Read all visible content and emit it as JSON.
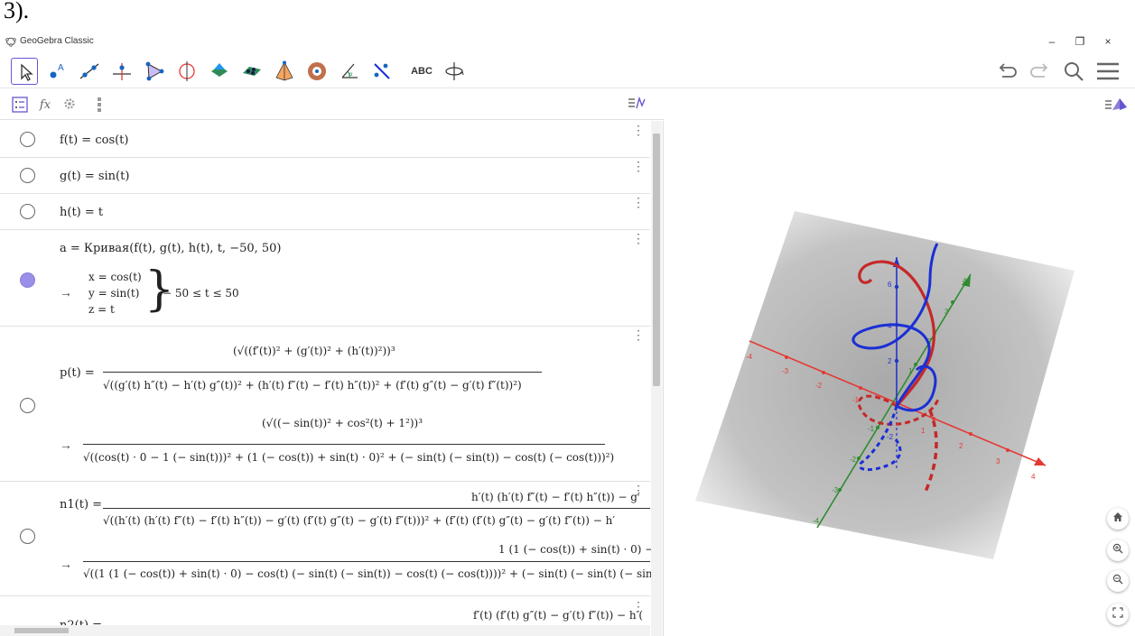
{
  "caption": "3).",
  "app": {
    "title": "GeoGebra Classic"
  },
  "window": {
    "minimize": "–",
    "maximize": "❐",
    "close": "×"
  },
  "toolbar": {
    "tools": [
      "move-tool",
      "point-tool",
      "line-tool",
      "perpendicular-tool",
      "polygon-tool",
      "circle-axis-tool",
      "intersect-surfaces-tool",
      "plane-tool",
      "pyramid-tool",
      "sphere-tool",
      "angle-tool",
      "reflect-tool",
      "text-tool",
      "rotate-view-tool"
    ],
    "text_tool_label": "ABC",
    "right": [
      "undo-icon",
      "redo-icon",
      "search-icon",
      "menu-icon"
    ]
  },
  "algebra_header": {
    "fx": "fx"
  },
  "rows": {
    "f": "f(t) = cos(t)",
    "g": "g(t) = sin(t)",
    "h": "h(t) = t",
    "a": {
      "def": "a = Кривая(f(t), g(t), h(t), t, −50, 50)",
      "arrow": "→",
      "x": "x = cos(t)",
      "y": "y = sin(t)",
      "z": "z = t",
      "range": "− 50 ≤ t ≤ 50"
    },
    "p": {
      "lhs": "p(t) =",
      "num": "(√((f′(t))² + (g′(t))² + (h′(t))²))³",
      "den": "√((g′(t) h″(t) − h′(t) g″(t))² + (h′(t) f″(t) − f′(t) h″(t))² + (f′(t) g″(t) − g′(t) f″(t))²)",
      "arrow": "→",
      "num2": "(√((− sin(t))² + cos²(t) + 1²))³",
      "den2": "√((cos(t) · 0 − 1 (− sin(t)))² + (1 (− cos(t)) + sin(t) · 0)² + (− sin(t) (− sin(t)) − cos(t) (− cos(t)))²)"
    },
    "n1": {
      "lhs": "n1(t) =",
      "num": "h′(t) (h′(t) f″(t) − f′(t) h″(t)) − g′",
      "den": "√((h′(t) (h′(t) f″(t) − f′(t) h″(t)) − g′(t) (f′(t) g″(t) − g′(t) f″(t)))² + (f′(t) (f′(t) g″(t) − g′(t) f″(t)) − h′",
      "arrow": "→",
      "num2": "1 (1 (− cos(t)) + sin(t) · 0) −",
      "den2": "√((1 (1 (− cos(t)) + sin(t) · 0) − cos(t) (− sin(t) (− sin(t)) − cos(t) (− cos(t))))² + (− sin(t) (− sin(t) (− sin("
    },
    "n2": {
      "lhs": "n2(t) =",
      "num": "f′(t) (f′(t) g″(t) − g′(t) f″(t)) − h′("
    }
  },
  "graphics": {
    "axis_colors": {
      "x": "#e53935",
      "y": "#2e8b2e",
      "z": "#2233cc"
    },
    "curve_colors": {
      "red": "#c62828",
      "blue": "#1a2fd6"
    },
    "x_ticks": [
      "-4",
      "-3",
      "-2",
      "-1",
      "1",
      "2",
      "3",
      "4"
    ],
    "y_ticks": [
      "-4",
      "-3",
      "-2",
      "-1",
      "1",
      "2",
      "3",
      "4"
    ],
    "z_ticks": [
      "-2",
      "2",
      "4",
      "6"
    ],
    "side_buttons": [
      "home-icon",
      "zoom-in-icon",
      "zoom-out-icon",
      "fullscreen-icon"
    ]
  }
}
